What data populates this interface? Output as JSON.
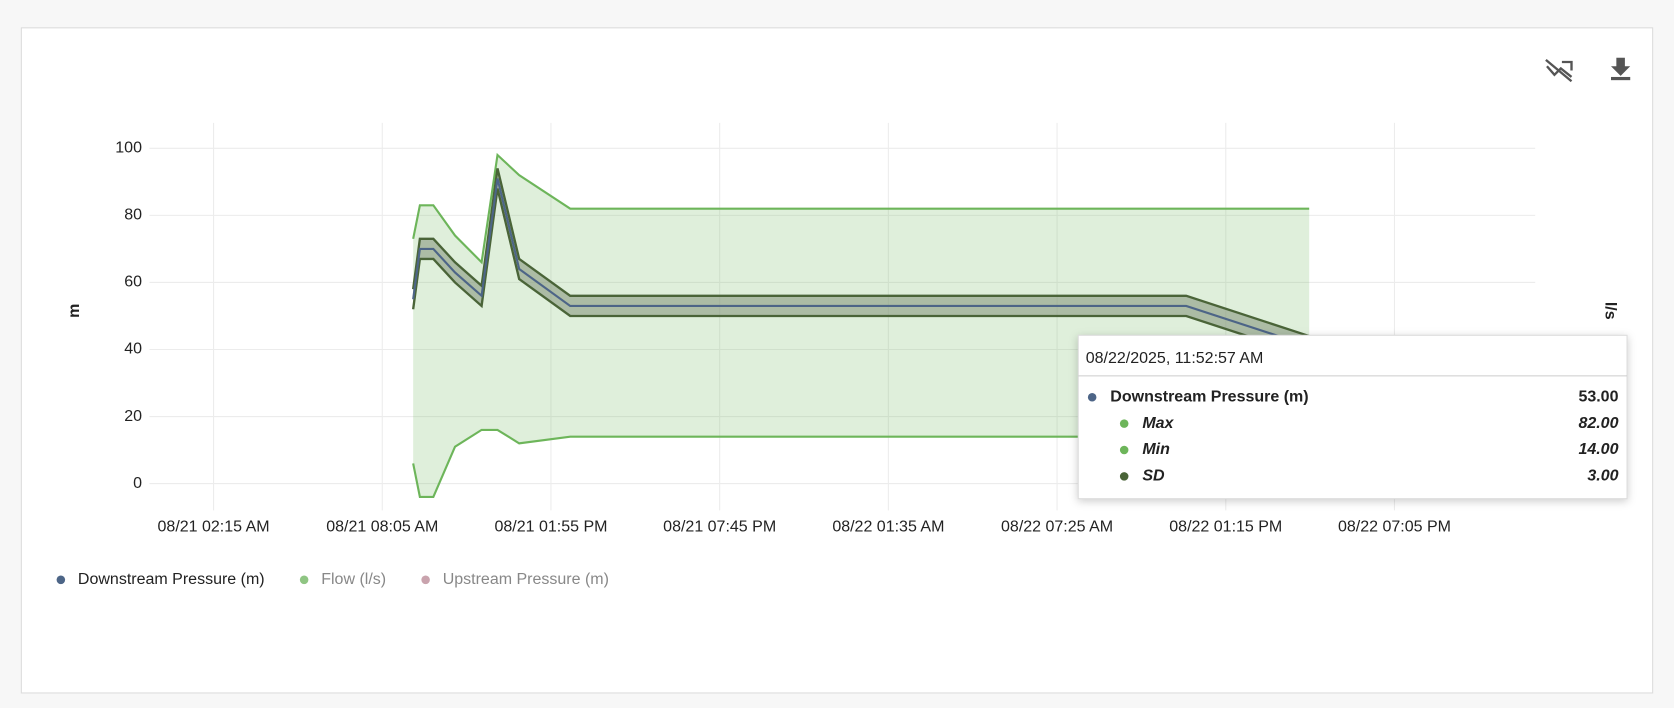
{
  "chart_data": {
    "type": "line",
    "x": [
      "08/21 09:09 AM",
      "08/21 09:23 AM",
      "08/21 09:51 AM",
      "08/21 10:36 AM",
      "08/21 11:31 AM",
      "08/21 12:04 PM",
      "08/21 12:49 PM",
      "08/21 02:35 PM",
      "08/22 11:53 AM",
      "08/22 04:08 PM"
    ],
    "xlim": [
      "08/21 12:02 AM",
      "08/22 11:57 PM"
    ],
    "xticks": [
      "08/21 02:15 AM",
      "08/21 08:05 AM",
      "08/21 01:55 PM",
      "08/21 07:45 PM",
      "08/22 01:35 AM",
      "08/22 07:25 AM",
      "08/22 01:15 PM",
      "08/22 07:05 PM"
    ],
    "ylim": [
      -8,
      107.6
    ],
    "yticks": [
      0,
      20,
      40,
      60,
      80,
      100
    ],
    "ylabel": "m",
    "y2label": "l/s",
    "grid": true,
    "series": [
      {
        "name": "Downstream Pressure (m)",
        "color": "#4d6587",
        "visible": true,
        "values": [
          55,
          70,
          70,
          63,
          56,
          91,
          64,
          53,
          53,
          41
        ],
        "max": [
          73,
          83,
          83,
          74,
          66,
          98,
          92,
          82,
          82,
          82
        ],
        "min": [
          6,
          -4,
          -4,
          11,
          16,
          16,
          12,
          14,
          14,
          14
        ],
        "sd": [
          3,
          3,
          3,
          3,
          3,
          3,
          3,
          3,
          3,
          3
        ],
        "band_color": "#6db55a",
        "sd_color": "#4a6438"
      },
      {
        "name": "Flow (l/s)",
        "color": "#8fc583",
        "visible": false,
        "axis": "y2",
        "values": [
          null,
          null,
          null,
          null,
          null,
          null,
          null,
          null,
          null,
          null
        ]
      },
      {
        "name": "Upstream Pressure (m)",
        "color": "#c9a3ad",
        "visible": false,
        "values": [
          null,
          null,
          null,
          null,
          null,
          null,
          null,
          null,
          null,
          null
        ]
      }
    ]
  },
  "tooltip": {
    "title": "08/22/2025, 11:52:57 AM",
    "rows": [
      {
        "label": "Downstream Pressure (m)",
        "value": "53.00",
        "color": "#4d6587"
      },
      {
        "label": "Max",
        "value": "82.00",
        "color": "#6db55a"
      },
      {
        "label": "Min",
        "value": "14.00",
        "color": "#6db55a"
      },
      {
        "label": "SD",
        "value": "3.00",
        "color": "#4a6438"
      }
    ]
  }
}
